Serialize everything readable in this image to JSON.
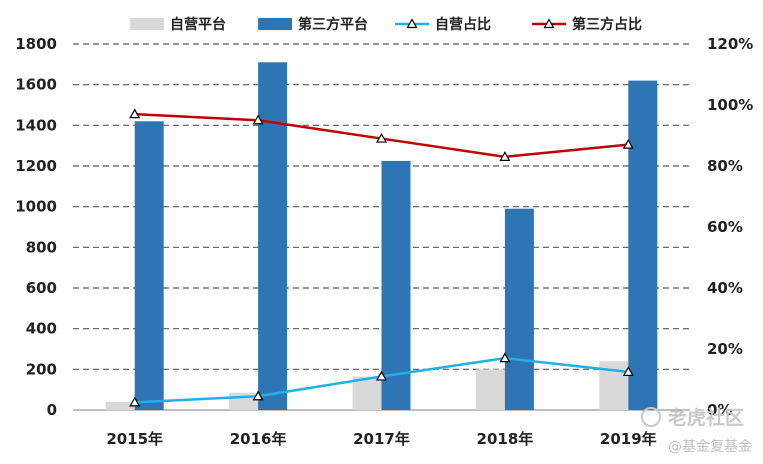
{
  "chart_data": {
    "type": "bar",
    "categories": [
      "2015年",
      "2016年",
      "2017年",
      "2018年",
      "2019年"
    ],
    "series": [
      {
        "name": "自营平台",
        "kind": "bar",
        "axis": "left",
        "color": "#d9d9d9",
        "values": [
          40,
          85,
          165,
          200,
          240
        ]
      },
      {
        "name": "第三方平台",
        "kind": "bar",
        "axis": "left",
        "color": "#2e75b6",
        "values": [
          1420,
          1710,
          1225,
          990,
          1620
        ]
      },
      {
        "name": "自营占比",
        "kind": "line",
        "axis": "right",
        "color": "#1fb0e8",
        "values": [
          2.5,
          4.5,
          11,
          17,
          12.5
        ]
      },
      {
        "name": "第三方占比",
        "kind": "line",
        "axis": "right",
        "color": "#c00000",
        "values": [
          97,
          95,
          89,
          83,
          87
        ]
      }
    ],
    "y_left": {
      "min": 0,
      "max": 1800,
      "ticks": [
        0,
        200,
        400,
        600,
        800,
        1000,
        1200,
        1400,
        1600,
        1800
      ]
    },
    "y_right": {
      "min": 0,
      "max": 120,
      "ticks": [
        "0%",
        "20%",
        "40%",
        "60%",
        "80%",
        "100%",
        "120%"
      ]
    },
    "grid": "dashed",
    "legend": "top"
  },
  "watermark": {
    "brand": "老虎社区",
    "account": "@基金复基金"
  }
}
